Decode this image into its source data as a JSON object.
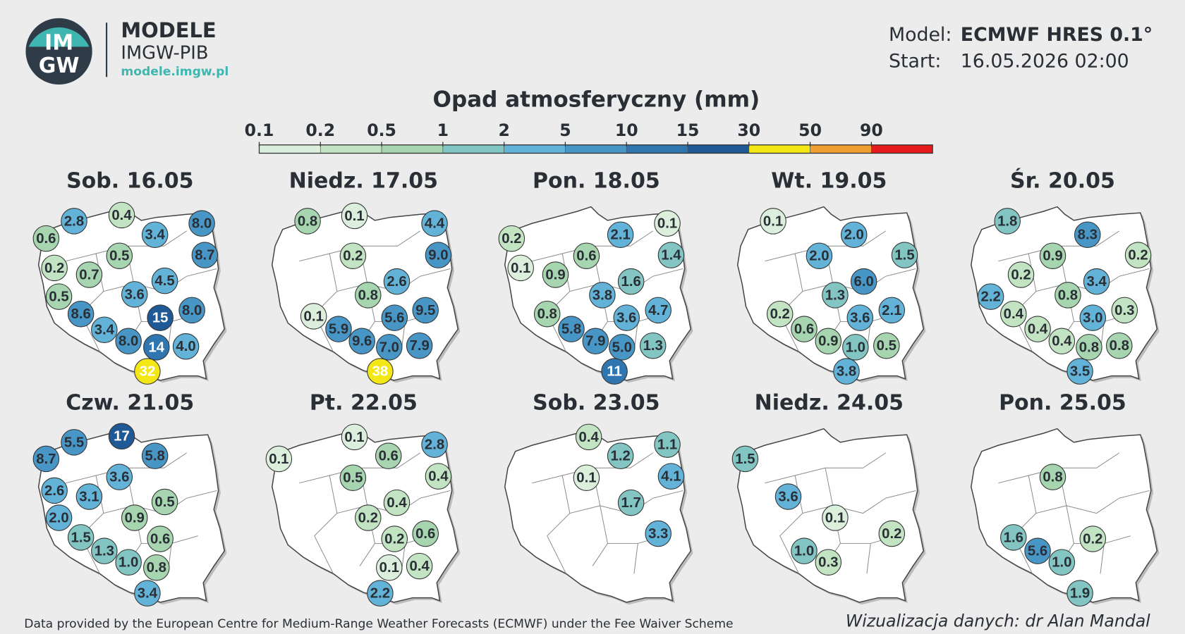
{
  "header": {
    "logo_top": "IM",
    "logo_bottom": "GW",
    "brand": "MODELE",
    "org": "IMGW-PIB",
    "url": "modele.imgw.pl",
    "model_label": "Model:",
    "model": "ECMWF HRES 0.1°",
    "start_label": "Start:",
    "start": "16.05.2026 02:00"
  },
  "legend": {
    "title": "Opad atmosferyczny (mm)",
    "ticks": [
      0.1,
      0.2,
      0.5,
      1,
      2,
      5,
      10,
      15,
      30,
      50,
      90
    ],
    "colors": [
      "#dcefdc",
      "#c3e4c3",
      "#a6d5b0",
      "#82c5c2",
      "#63b2d8",
      "#4896c6",
      "#2f76b0",
      "#1f5a96",
      "#f3e816",
      "#ef9f31",
      "#e61b1b"
    ]
  },
  "panels": [
    {
      "title": "Sob. 16.05",
      "values": [
        "2.8",
        "0.4",
        "3.4",
        "8.0",
        "0.6",
        "8.7",
        "0.5",
        "0.2",
        "0.7",
        "4.5",
        "0.5",
        "3.6",
        "15",
        "8.0",
        "8.6",
        "3.4",
        "8.0",
        "14",
        "4.0",
        "32"
      ]
    },
    {
      "title": "Niedz. 17.05",
      "values": [
        "0.8",
        "0.1",
        "4.4",
        "9.0",
        "0.2",
        "2.6",
        "0.8",
        "0.1",
        "5.6",
        "9.5",
        "5.9",
        "9.6",
        "7.0",
        "7.9",
        "38"
      ]
    },
    {
      "title": "Pon. 18.05",
      "values": [
        "0.2",
        "2.1",
        "0.1",
        "0.1",
        "0.6",
        "1.4",
        "0.9",
        "1.6",
        "3.8",
        "0.8",
        "3.6",
        "4.7",
        "5.8",
        "7.9",
        "5.0",
        "1.3",
        "11"
      ]
    },
    {
      "title": "Wt. 19.05",
      "values": [
        "0.1",
        "2.0",
        "2.0",
        "1.5",
        "6.0",
        "1.3",
        "0.2",
        "3.6",
        "2.1",
        "0.6",
        "0.9",
        "1.0",
        "0.5",
        "3.8"
      ]
    },
    {
      "title": "Śr. 20.05",
      "values": [
        "1.8",
        "8.3",
        "0.9",
        "0.2",
        "0.2",
        "3.4",
        "2.2",
        "0.8",
        "0.4",
        "3.0",
        "0.3",
        "0.4",
        "0.4",
        "0.8",
        "0.8",
        "3.5"
      ]
    },
    {
      "title": "Czw. 21.05",
      "values": [
        "17",
        "5.5",
        "5.8",
        "8.7",
        "3.6",
        "2.6",
        "3.1",
        "0.5",
        "2.0",
        "0.9",
        "1.5",
        "0.6",
        "1.3",
        "1.0",
        "0.8",
        "3.4"
      ]
    },
    {
      "title": "Pt. 22.05",
      "values": [
        "0.1",
        "2.8",
        "0.1",
        "0.6",
        "0.4",
        "0.5",
        "0.4",
        "0.2",
        "0.2",
        "0.6",
        "0.1",
        "0.4",
        "2.2"
      ]
    },
    {
      "title": "Sob. 23.05",
      "values": [
        "0.4",
        "1.1",
        "1.2",
        "0.1",
        "4.1",
        "1.7",
        "3.3"
      ]
    },
    {
      "title": "Niedz. 24.05",
      "values": [
        "1.5",
        "3.6",
        "0.1",
        "0.2",
        "1.0",
        "0.3"
      ]
    },
    {
      "title": "Pon. 25.05",
      "values": [
        "0.8",
        "1.6",
        "5.6",
        "0.2",
        "1.0",
        "1.9"
      ]
    }
  ],
  "footer": {
    "credit": "Data provided by the European Centre for Medium-Range Weather Forecasts (ECMWF) under the Fee Waiver Scheme",
    "author": "Wizualizacja danych: dr Alan Mandal"
  }
}
